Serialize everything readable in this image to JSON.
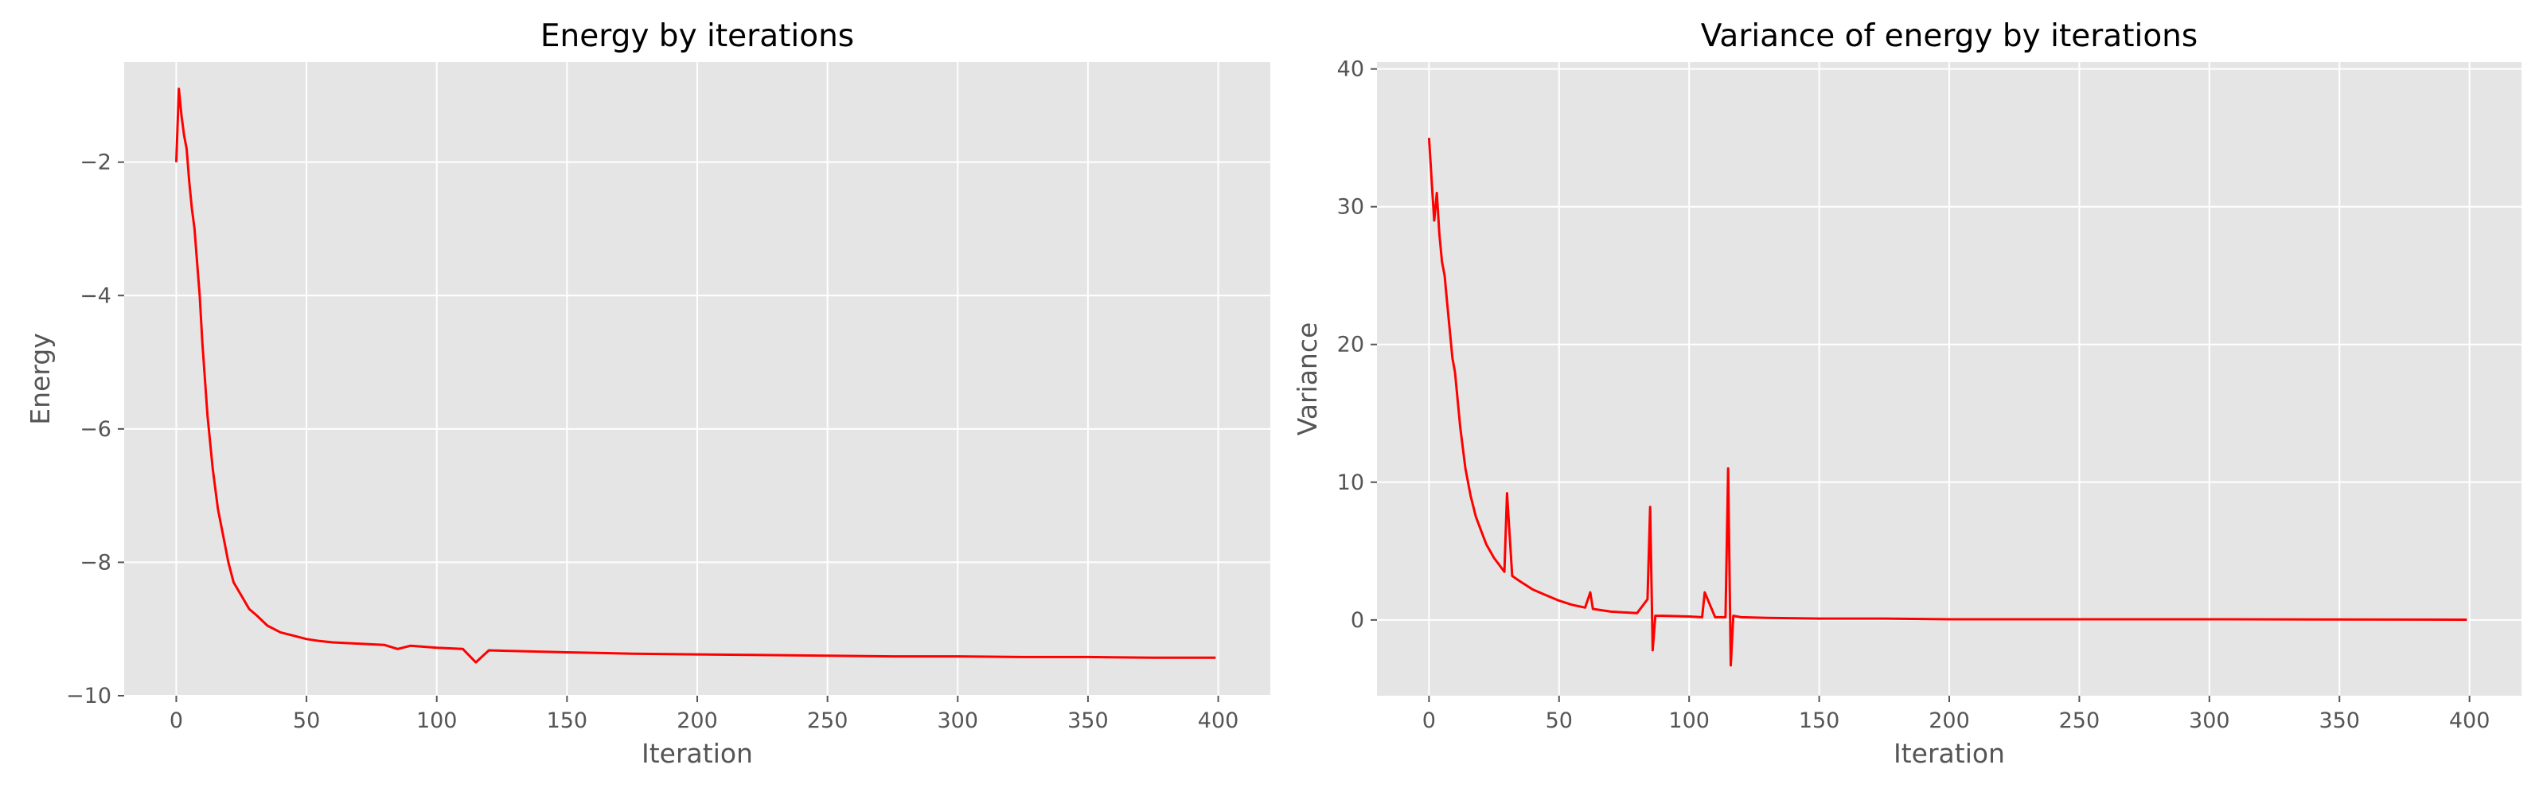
{
  "chart_data": [
    {
      "type": "line",
      "title": "Energy by iterations",
      "xlabel": "Iteration",
      "ylabel": "Energy",
      "xlim": [
        -20,
        420
      ],
      "ylim": [
        -10,
        -0.5
      ],
      "xticks": [
        0,
        50,
        100,
        150,
        200,
        250,
        300,
        350,
        400
      ],
      "yticks": [
        -10,
        -8,
        -6,
        -4,
        -2
      ],
      "xtick_labels": [
        "0",
        "50",
        "100",
        "150",
        "200",
        "250",
        "300",
        "350",
        "400"
      ],
      "ytick_labels": [
        "−10",
        "−8",
        "−6",
        "−4",
        "−2"
      ],
      "grid": true,
      "background": "#e5e5e5",
      "line_color": "#ff0000",
      "series": [
        {
          "x": [
            0,
            1,
            2,
            3,
            4,
            5,
            6,
            7,
            8,
            9,
            10,
            12,
            14,
            16,
            18,
            20,
            22,
            25,
            28,
            31,
            35,
            40,
            45,
            50,
            55,
            60,
            70,
            80,
            85,
            90,
            100,
            110,
            115,
            120,
            130,
            150,
            175,
            200,
            225,
            250,
            275,
            300,
            325,
            350,
            375,
            399
          ],
          "y": [
            -2.0,
            -0.9,
            -1.3,
            -1.6,
            -1.8,
            -2.3,
            -2.7,
            -3.0,
            -3.5,
            -4.0,
            -4.7,
            -5.8,
            -6.6,
            -7.2,
            -7.6,
            -8.0,
            -8.3,
            -8.5,
            -8.7,
            -8.8,
            -8.95,
            -9.05,
            -9.1,
            -9.15,
            -9.18,
            -9.2,
            -9.22,
            -9.24,
            -9.3,
            -9.25,
            -9.28,
            -9.3,
            -9.5,
            -9.32,
            -9.33,
            -9.35,
            -9.37,
            -9.38,
            -9.39,
            -9.4,
            -9.41,
            -9.41,
            -9.42,
            -9.42,
            -9.43,
            -9.43
          ]
        }
      ]
    },
    {
      "type": "line",
      "title": "Variance of energy by iterations",
      "xlabel": "Iteration",
      "ylabel": "Variance",
      "xlim": [
        -20,
        420
      ],
      "ylim": [
        -5.5,
        40.5
      ],
      "xticks": [
        0,
        50,
        100,
        150,
        200,
        250,
        300,
        350,
        400
      ],
      "yticks": [
        0,
        10,
        20,
        30,
        40
      ],
      "xtick_labels": [
        "0",
        "50",
        "100",
        "150",
        "200",
        "250",
        "300",
        "350",
        "400"
      ],
      "ytick_labels": [
        "0",
        "10",
        "20",
        "30",
        "40"
      ],
      "grid": true,
      "background": "#e5e5e5",
      "line_color": "#ff0000",
      "series": [
        {
          "x": [
            0,
            1,
            2,
            3,
            4,
            5,
            6,
            7,
            8,
            9,
            10,
            12,
            14,
            16,
            18,
            20,
            22,
            25,
            27,
            29,
            30,
            32,
            35,
            40,
            45,
            50,
            55,
            60,
            62,
            63,
            70,
            80,
            84,
            85,
            86,
            87,
            90,
            100,
            105,
            106,
            110,
            114,
            115,
            116,
            117,
            120,
            130,
            150,
            175,
            200,
            250,
            300,
            350,
            399
          ],
          "y": [
            35,
            32,
            29,
            31,
            28,
            26,
            25,
            23,
            21,
            19,
            18,
            14,
            11,
            9,
            7.5,
            6.5,
            5.5,
            4.5,
            4,
            3.5,
            9.2,
            3.2,
            2.8,
            2.2,
            1.8,
            1.4,
            1.1,
            0.9,
            2,
            0.8,
            0.6,
            0.5,
            1.5,
            8.2,
            -2.2,
            0.3,
            0.3,
            0.25,
            0.2,
            2,
            0.2,
            0.2,
            11,
            -3.3,
            0.3,
            0.2,
            0.15,
            0.1,
            0.1,
            0.05,
            0.05,
            0.05,
            0.03,
            0.02
          ]
        }
      ]
    }
  ]
}
